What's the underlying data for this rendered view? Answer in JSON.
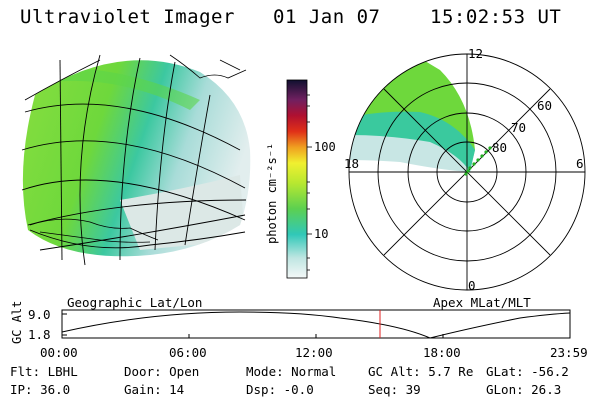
{
  "header": {
    "title": "Ultraviolet Imager",
    "date": "01 Jan 07",
    "time": "15:02:53 UT"
  },
  "colorbar": {
    "unit_label": "photon cm⁻²s⁻¹",
    "ticks": [
      "100",
      "10"
    ]
  },
  "polar_plot": {
    "mlt_labels": [
      "12",
      "18",
      "6",
      "0"
    ],
    "lat_labels": [
      "60",
      "70",
      "80"
    ]
  },
  "timeline": {
    "left_caption": "Geographic Lat/Lon",
    "right_caption": "Apex MLat/MLT",
    "y_label": "GC Alt",
    "y_ticks": [
      "9.0",
      "1.8"
    ],
    "x_ticks": [
      "00:00",
      "06:00",
      "12:00",
      "18:00",
      "23:59"
    ]
  },
  "info": {
    "flt": "Flt: LBHL",
    "ip": "IP: 36.0",
    "door": "Door: Open",
    "gain": "Gain: 14",
    "mode": "Mode: Normal",
    "dsp": "Dsp:   -0.0",
    "gcalt": "GC Alt: 5.7 Re",
    "seq": "Seq: 39",
    "glat": "GLat: -56.2",
    "glon": "GLon:  26.3"
  }
}
